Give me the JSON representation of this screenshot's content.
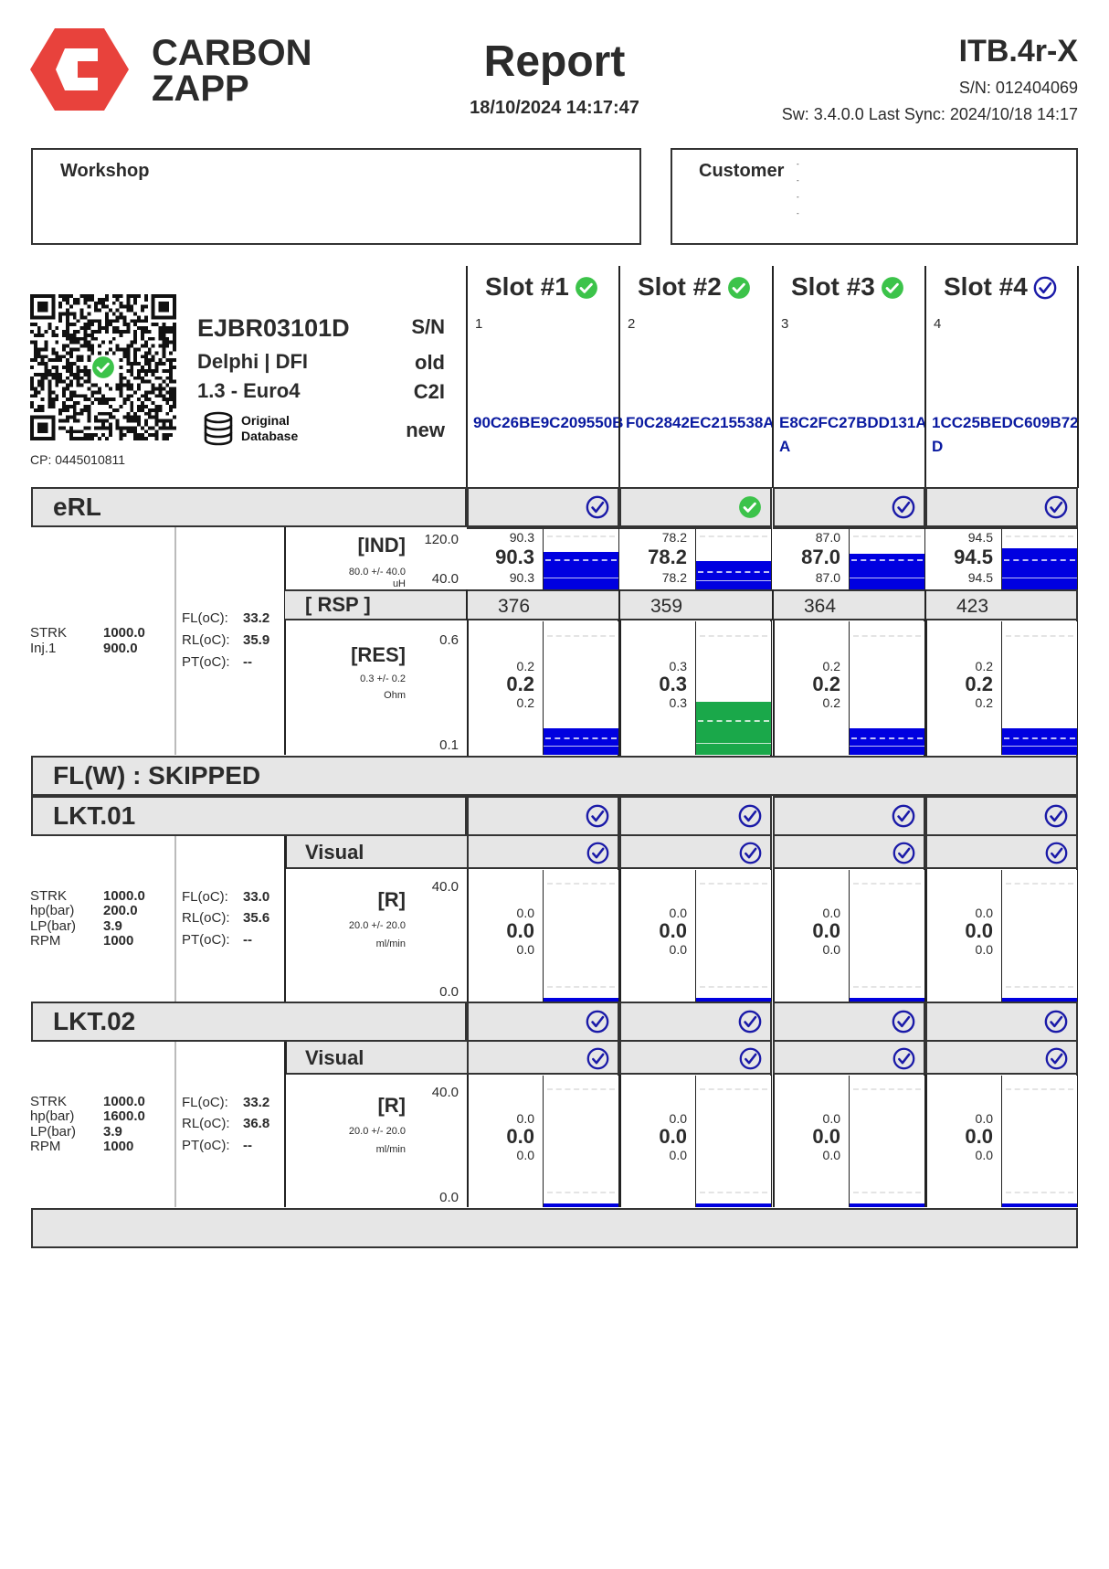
{
  "header": {
    "brand": [
      "CARBON",
      "ZAPP"
    ],
    "title": "Report",
    "datetime": "18/10/2024 14:17:47",
    "device": "ITB.4r-X",
    "serial": "S/N: 012404069",
    "software": "Sw: 3.4.0.0 Last Sync: 2024/10/18 14:17",
    "brand_color": "#e8423c"
  },
  "workshop": {
    "label": "Workshop"
  },
  "customer": {
    "label": "Customer",
    "lines": [
      "-",
      "-",
      "-",
      "-"
    ]
  },
  "injector": {
    "code": "EJBR03101D",
    "make": "Delphi | DFI",
    "spec": "1.3 - Euro4",
    "database": [
      "Original",
      "Database"
    ],
    "sn_labels": [
      "S/N",
      "old",
      "C2I",
      "new"
    ],
    "cp": "CP: 0445010811",
    "qr_status": "pass"
  },
  "colors": {
    "pass": "#3cc34a",
    "check": "#1a1aa8",
    "bar": "#0000e0",
    "bar_pass": "#1aa84a",
    "header_bg": "#e6e6e6"
  },
  "slots": [
    {
      "title": "Slot #1",
      "status": "pass",
      "number": "1",
      "code": [
        "90C26BE9C209550B"
      ]
    },
    {
      "title": "Slot #2",
      "status": "pass",
      "number": "2",
      "code": [
        "F0C2842EC215538A"
      ]
    },
    {
      "title": "Slot #3",
      "status": "pass",
      "number": "3",
      "code": [
        "E8C2FC27BDD131A",
        "A"
      ]
    },
    {
      "title": "Slot #4",
      "status": "check",
      "number": "4",
      "code": [
        "1CC25BEDC609B72",
        "D"
      ]
    }
  ],
  "erl": {
    "title": "eRL",
    "slot_status": [
      "check",
      "pass",
      "check",
      "check"
    ],
    "params": [
      {
        "label": "STRK",
        "value": "1000.0"
      },
      {
        "label": "Inj.1",
        "value": "900.0"
      }
    ],
    "temps": [
      {
        "label": "FL(oC):",
        "value": "33.2"
      },
      {
        "label": "RL(oC):",
        "value": "35.9"
      },
      {
        "label": "PT(oC):",
        "value": "--"
      }
    ],
    "ind": {
      "label": "[IND]",
      "spec": "80.0 +/- 40.0",
      "unit": "uH",
      "max": "120.0",
      "min": "40.0",
      "values": [
        "90.3",
        "78.2",
        "87.0",
        "94.5"
      ],
      "bar_color": [
        "bar",
        "bar",
        "bar",
        "bar"
      ]
    },
    "rsp": {
      "label": "[ RSP ]",
      "values": [
        "376",
        "359",
        "364",
        "423"
      ]
    },
    "res": {
      "label": "[RES]",
      "spec": "0.3 +/- 0.2",
      "unit": "Ohm",
      "max": "0.6",
      "min": "0.1",
      "values": [
        "0.2",
        "0.3",
        "0.2",
        "0.2"
      ],
      "bar_color": [
        "bar",
        "bar_pass",
        "bar",
        "bar"
      ]
    }
  },
  "flw": {
    "title": "FL(W) : SKIPPED"
  },
  "lkt": [
    {
      "title": "LKT.01",
      "slot_status": [
        "check",
        "check",
        "check",
        "check"
      ],
      "visual_label": "Visual",
      "visual_status": [
        "check",
        "check",
        "check",
        "check"
      ],
      "params": [
        {
          "label": "STRK",
          "value": "1000.0"
        },
        {
          "label": "hp(bar)",
          "value": "200.0"
        },
        {
          "label": "LP(bar)",
          "value": "3.9"
        },
        {
          "label": "RPM",
          "value": "1000"
        }
      ],
      "temps": [
        {
          "label": "FL(oC):",
          "value": "33.0"
        },
        {
          "label": "RL(oC):",
          "value": "35.6"
        },
        {
          "label": "PT(oC):",
          "value": "--"
        }
      ],
      "measure": {
        "label": "[R]",
        "spec": "20.0 +/- 20.0",
        "unit": "ml/min",
        "max": "40.0",
        "min": "0.0",
        "values": [
          "0.0",
          "0.0",
          "0.0",
          "0.0"
        ]
      }
    },
    {
      "title": "LKT.02",
      "slot_status": [
        "check",
        "check",
        "check",
        "check"
      ],
      "visual_label": "Visual",
      "visual_status": [
        "check",
        "check",
        "check",
        "check"
      ],
      "params": [
        {
          "label": "STRK",
          "value": "1000.0"
        },
        {
          "label": "hp(bar)",
          "value": "1600.0"
        },
        {
          "label": "LP(bar)",
          "value": "3.9"
        },
        {
          "label": "RPM",
          "value": "1000"
        }
      ],
      "temps": [
        {
          "label": "FL(oC):",
          "value": "33.2"
        },
        {
          "label": "RL(oC):",
          "value": "36.8"
        },
        {
          "label": "PT(oC):",
          "value": "--"
        }
      ],
      "measure": {
        "label": "[R]",
        "spec": "20.0 +/- 20.0",
        "unit": "ml/min",
        "max": "40.0",
        "min": "0.0",
        "values": [
          "0.0",
          "0.0",
          "0.0",
          "0.0"
        ]
      }
    }
  ]
}
